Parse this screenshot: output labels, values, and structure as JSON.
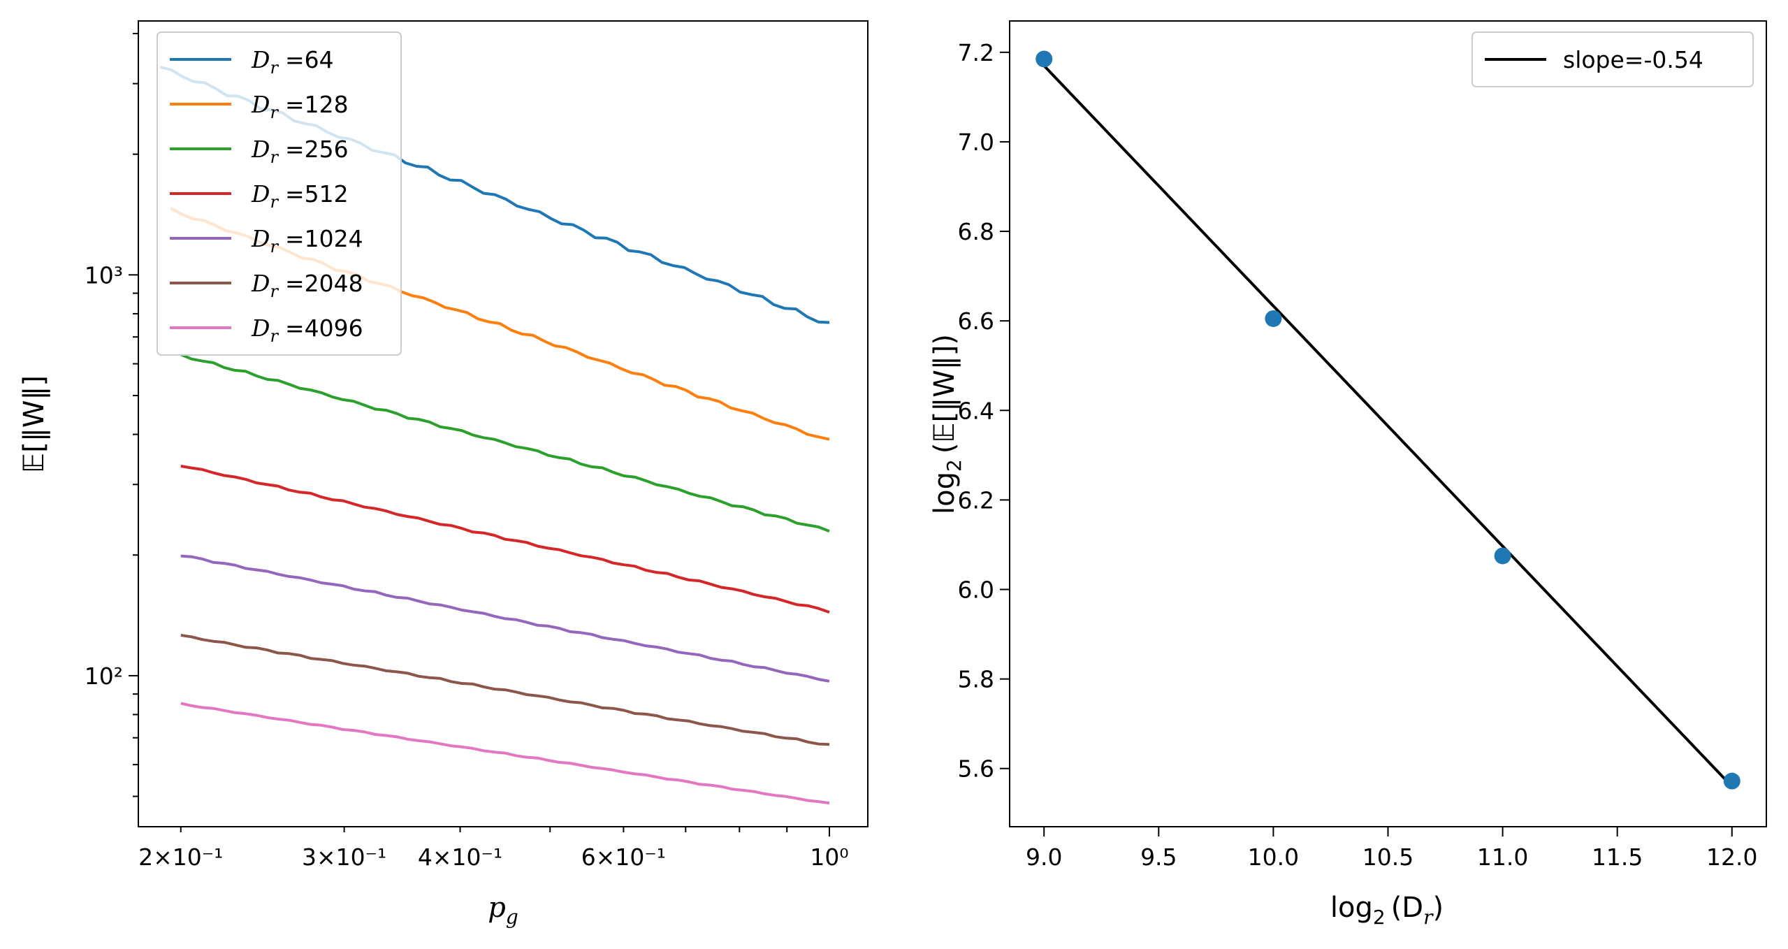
{
  "chart_data": [
    {
      "type": "line",
      "xscale": "log",
      "yscale": "log",
      "xlabel": "p",
      "xlabel_sub": "g",
      "ylabel": "𝔼[‖W‖]",
      "xlim": [
        0.18,
        1.1
      ],
      "ylim": [
        42,
        4300
      ],
      "x_ticks": [
        {
          "value": 0.2,
          "label": "2×10⁻¹"
        },
        {
          "value": 0.3,
          "label": "3×10⁻¹"
        },
        {
          "value": 0.4,
          "label": "4×10⁻¹"
        },
        {
          "value": 0.6,
          "label": "6×10⁻¹"
        },
        {
          "value": 1.0,
          "label": "10⁰"
        }
      ],
      "y_ticks": [
        {
          "value": 100,
          "label": "10²"
        },
        {
          "value": 1000,
          "label": "10³"
        }
      ],
      "legend_position": "upper-left",
      "x_range": [
        0.2,
        1.0
      ],
      "series": [
        {
          "name": "D_r =64",
          "legend": "=64",
          "color": "#1f77b4",
          "start_value": 3300,
          "end_value": 750,
          "wobble": 0.018,
          "x_start": 0.19
        },
        {
          "name": "D_r =128",
          "legend": "=128",
          "color": "#ff7f0e",
          "start_value": 1450,
          "end_value": 385,
          "wobble": 0.012,
          "x_start": 0.195
        },
        {
          "name": "D_r =256",
          "legend": "=256",
          "color": "#2ca02c",
          "start_value": 630,
          "end_value": 230,
          "wobble": 0.009,
          "x_start": 0.2
        },
        {
          "name": "D_r =512",
          "legend": "=512",
          "color": "#d62728",
          "start_value": 335,
          "end_value": 145,
          "wobble": 0.007,
          "x_start": 0.2
        },
        {
          "name": "D_r =1024",
          "legend": "=1024",
          "color": "#9467bd",
          "start_value": 200,
          "end_value": 97,
          "wobble": 0.006,
          "x_start": 0.2
        },
        {
          "name": "D_r =2048",
          "legend": "=2048",
          "color": "#8c564b",
          "start_value": 126,
          "end_value": 67,
          "wobble": 0.006,
          "x_start": 0.2
        },
        {
          "name": "D_r =4096",
          "legend": "=4096",
          "color": "#e377c2",
          "start_value": 85,
          "end_value": 48,
          "wobble": 0.004,
          "x_start": 0.2
        }
      ]
    },
    {
      "type": "scatter",
      "xlabel": "log",
      "xlabel_arg": "(D",
      "ylabel": "log",
      "ylabel_arg": "(𝔼[‖W‖])",
      "xlim": [
        8.85,
        12.15
      ],
      "ylim": [
        5.47,
        7.27
      ],
      "x_ticks": [
        9.0,
        9.5,
        10.0,
        10.5,
        11.0,
        11.5,
        12.0
      ],
      "y_ticks": [
        5.6,
        5.8,
        6.0,
        6.2,
        6.4,
        6.6,
        6.8,
        7.0,
        7.2
      ],
      "points": {
        "x": [
          9,
          10,
          11,
          12
        ],
        "y": [
          7.185,
          6.605,
          6.075,
          5.572
        ],
        "color": "#1f77b4"
      },
      "fit_line": {
        "x": [
          9,
          12
        ],
        "y": [
          7.17,
          5.56
        ],
        "color": "#000000",
        "label": "slope=-0.54"
      },
      "legend_position": "upper-right"
    }
  ]
}
